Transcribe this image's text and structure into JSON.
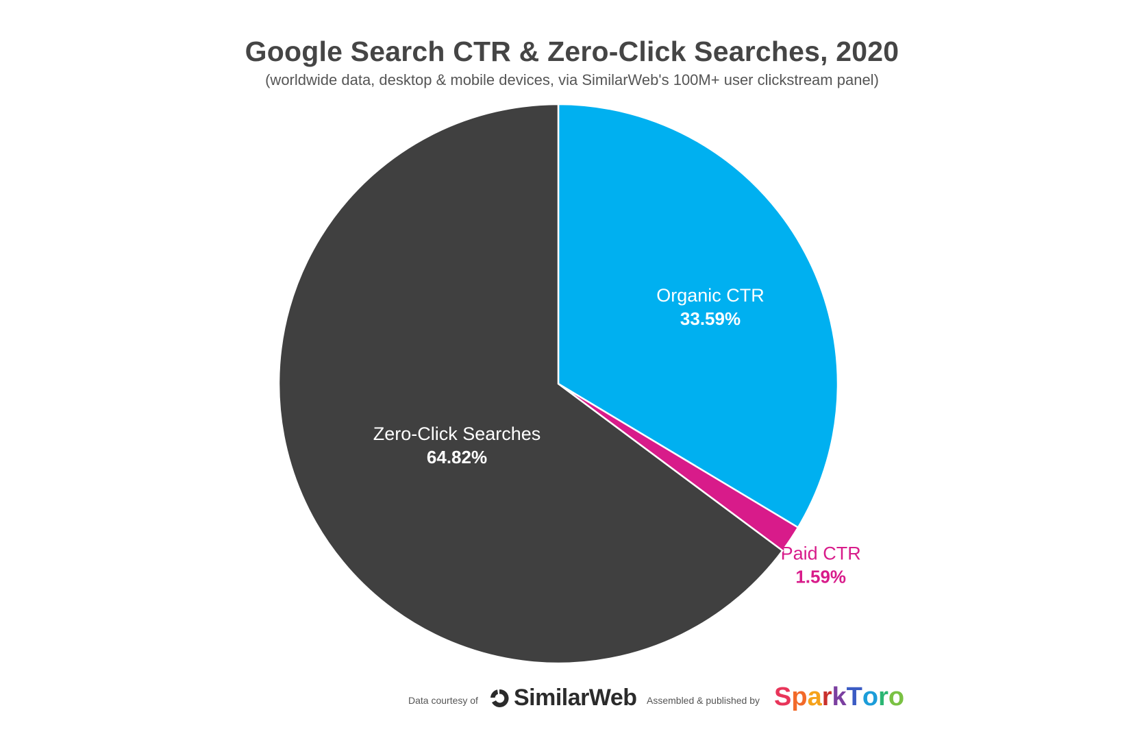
{
  "chart_data": {
    "type": "pie",
    "title": "Google Search CTR & Zero-Click Searches, 2020",
    "subtitle": "(worldwide data, desktop & mobile devices, via SimilarWeb's 100M+ user clickstream panel)",
    "slices": [
      {
        "label": "Organic CTR",
        "value_label": "33.59%",
        "value": 33.59,
        "color": "#00B0F0",
        "label_color": "#ffffff"
      },
      {
        "label": "Paid CTR",
        "value_label": "1.59%",
        "value": 1.59,
        "color": "#D81B8A",
        "label_color": "#D81B8A"
      },
      {
        "label": "Zero-Click Searches",
        "value_label": "64.82%",
        "value": 64.82,
        "color": "#404040",
        "label_color": "#ffffff"
      }
    ],
    "start_angle_deg": 0,
    "direction": "clockwise"
  },
  "footer": {
    "courtesy_text": "Data courtesy of",
    "courtesy_logo_text": "SimilarWeb",
    "published_text": "Assembled & published by",
    "publisher_logo_text": "SparkToro"
  },
  "colors": {
    "title": "#454545",
    "organic": "#00B0F0",
    "paid": "#D81B8A",
    "zero_click": "#404040",
    "sparktoro_letters": [
      "#E8355A",
      "#F26A2A",
      "#F5A21B",
      "#C9302C",
      "#7B3FA0",
      "#3B5CC4",
      "#1C9DD9",
      "#2BB673",
      "#7AC143"
    ]
  }
}
